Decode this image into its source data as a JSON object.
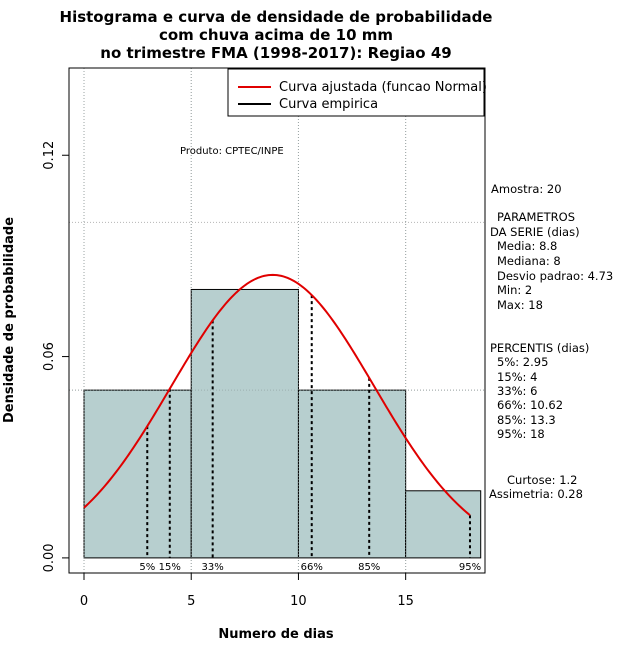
{
  "chart_data": {
    "type": "bar",
    "title_lines": [
      "Histograma e curva de densidade de probabilidade",
      "com chuva acima de 10 mm",
      "no trimestre FMA (1998-2017): Regiao 49"
    ],
    "xlabel": "Numero de dias",
    "ylabel": "Densidade de probabilidade",
    "xlim": [
      -0.7,
      18.7
    ],
    "ylim": [
      -0.0045,
      0.146
    ],
    "x_ticks": [
      0,
      5,
      10,
      15
    ],
    "y_ticks": [
      0.0,
      0.06,
      0.12
    ],
    "y_tick_labels": [
      "0.00",
      "0.06",
      "0.12"
    ],
    "grid": true,
    "histogram": [
      {
        "x0": 0,
        "x1": 5,
        "density": 0.05
      },
      {
        "x0": 5,
        "x1": 10,
        "density": 0.08
      },
      {
        "x0": 10,
        "x1": 15,
        "density": 0.05
      },
      {
        "x0": 15,
        "x1": 18.5,
        "density": 0.02
      }
    ],
    "normal_fit": {
      "mean": 8.8,
      "sd": 4.73,
      "x_from": 0,
      "x_to": 18
    },
    "series": [
      {
        "name": "Curva ajustada (funcao Normal)",
        "color": "#e00000"
      },
      {
        "name": "Curva empirica",
        "color": "#000000"
      }
    ],
    "legend_position": "top-right",
    "annotation": "Produto: CPTEC/INPE",
    "percentiles": [
      {
        "label": "5%",
        "x": 2.95
      },
      {
        "label": "15%",
        "x": 4
      },
      {
        "label": "33%",
        "x": 6
      },
      {
        "label": "66%",
        "x": 10.62
      },
      {
        "label": "85%",
        "x": 13.3
      },
      {
        "label": "95%",
        "x": 18
      }
    ],
    "bar_fill": "#b7cfcf"
  },
  "side_panel": {
    "amostra": "Amostra: 20",
    "parametros_title_1": "PARAMETROS",
    "parametros_title_2": "DA SERIE (dias)",
    "media": "Media: 8.8",
    "mediana": "Mediana: 8",
    "desvio": "Desvio padrao: 4.73",
    "min": "Min: 2",
    "max": "Max: 18",
    "percentis_title": "PERCENTIS (dias)",
    "p5": "5%: 2.95",
    "p15": "15%: 4",
    "p33": "33%: 6",
    "p66": "66%: 10.62",
    "p85": "85%: 13.3",
    "p95": "95%: 18",
    "curtose": "Curtose: 1.2",
    "assimetria": "Assimetria: 0.28"
  }
}
